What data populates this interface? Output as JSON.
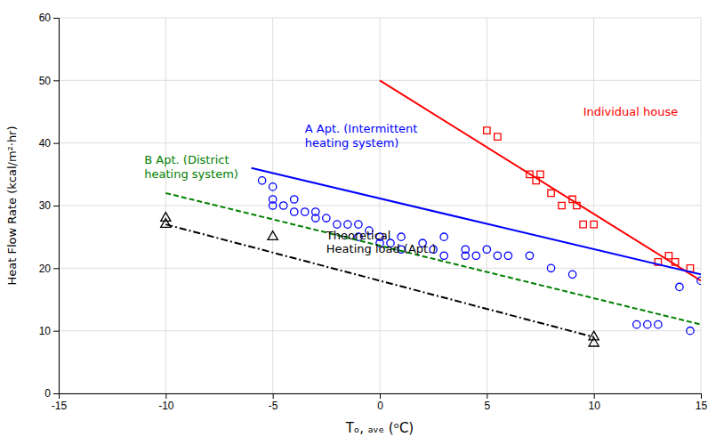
{
  "chart_data": {
    "type": "scatter",
    "xlabel": "Tₒ, ₐᵥₑ (ᵒC)",
    "ylabel": "Heat Flow Rate (kcal/m²·hr)",
    "xlim": [
      -15,
      15
    ],
    "ylim": [
      0,
      60
    ],
    "xticks": [
      -15,
      -10,
      -5,
      0,
      5,
      10,
      15
    ],
    "yticks": [
      0,
      10,
      20,
      30,
      40,
      50,
      60
    ],
    "grid": true,
    "series": [
      {
        "type": "scatter",
        "marker": "square",
        "color": "#ff0000",
        "x": [
          5,
          5.5,
          7,
          7.3,
          7.5,
          8,
          8.5,
          9,
          9.2,
          9.5,
          10,
          13,
          13.5,
          13.8,
          14.5
        ],
        "values": [
          42,
          41,
          35,
          34,
          35,
          32,
          30,
          31,
          30,
          27,
          27,
          21,
          22,
          21,
          20
        ]
      },
      {
        "type": "line",
        "line_style": "solid",
        "color": "#ff0000",
        "x": [
          0,
          15
        ],
        "values": [
          50,
          18
        ]
      },
      {
        "type": "scatter",
        "marker": "circle",
        "color": "#0000ff",
        "x": [
          -5.5,
          -5,
          -5,
          -5,
          -4.5,
          -4,
          -4,
          -3.5,
          -3,
          -3,
          -2.5,
          -2,
          -1.5,
          -1,
          -1,
          -0.5,
          0,
          0,
          0.5,
          1,
          1,
          2,
          2.5,
          3,
          3,
          4,
          4,
          4.5,
          5,
          5.5,
          6,
          7,
          8,
          9,
          12,
          12.5,
          13,
          14,
          14.5,
          15
        ],
        "values": [
          34,
          33,
          31,
          30,
          30,
          31,
          29,
          29,
          29,
          28,
          28,
          27,
          27,
          27,
          25,
          26,
          25,
          24,
          24,
          25,
          23,
          24,
          23,
          25,
          22,
          23,
          22,
          22,
          23,
          22,
          22,
          22,
          20,
          19,
          11,
          11,
          11,
          17,
          10,
          18
        ]
      },
      {
        "type": "line",
        "line_style": "solid",
        "color": "#0000ff",
        "x": [
          -6,
          15
        ],
        "values": [
          36,
          19
        ]
      },
      {
        "type": "line",
        "line_style": "dashed",
        "color": "#008000",
        "x": [
          -10,
          15
        ],
        "values": [
          32,
          11
        ]
      },
      {
        "type": "scatter",
        "marker": "triangle",
        "color": "#000000",
        "x": [
          -10,
          -10,
          -5,
          10,
          10
        ],
        "values": [
          27,
          28,
          25,
          8,
          9
        ]
      },
      {
        "type": "line",
        "line_style": "dashdot",
        "color": "#000000",
        "x": [
          -10,
          10
        ],
        "values": [
          27,
          9
        ]
      }
    ],
    "annotations": [
      {
        "text": "Individual house",
        "x": 9.5,
        "y": 44,
        "color": "#ff0000"
      },
      {
        "text": "A Apt. (Intermittent\nheating system)",
        "x": -3.5,
        "y": 39,
        "color": "#0000ff"
      },
      {
        "text": "B Apt. (District\nheating system)",
        "x": -11,
        "y": 34,
        "color": "#008000"
      },
      {
        "text": "Theoretical\nHeating load (Apt.)",
        "x": -2.5,
        "y": 22,
        "color": "#000000"
      }
    ]
  }
}
